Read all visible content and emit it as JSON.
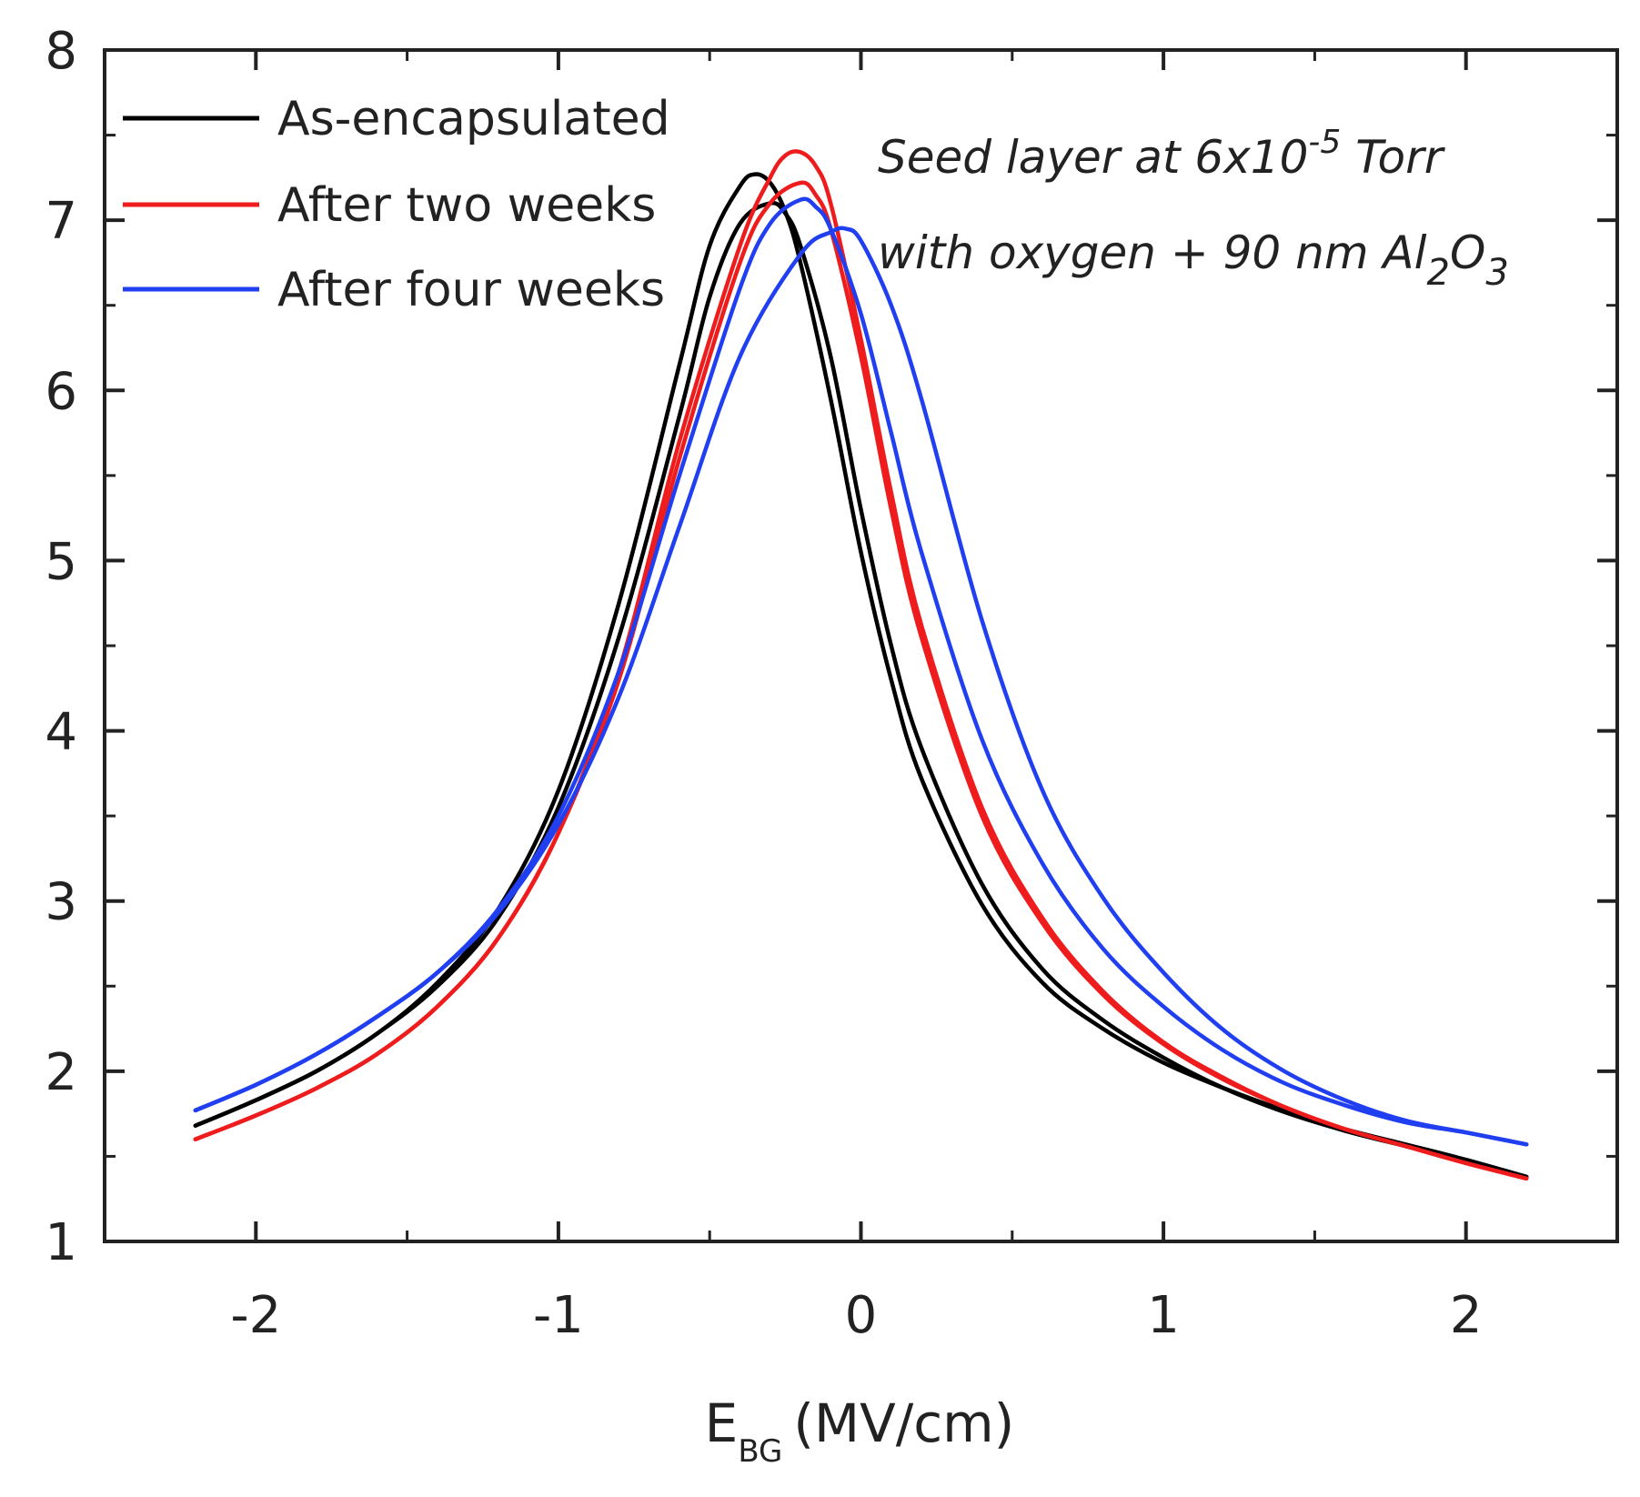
{
  "chart_data": {
    "type": "line",
    "title": "",
    "xlabel": {
      "main": "E",
      "sub": "BG",
      "unit": "(MV/cm)"
    },
    "ylabel": "",
    "xlim": [
      -2.5,
      2.5
    ],
    "ylim": [
      1,
      8
    ],
    "x_ticks": [
      -2,
      -1,
      0,
      1,
      2
    ],
    "x_tick_labels": [
      "-2",
      "-1",
      "0",
      "1",
      "2"
    ],
    "y_ticks": [
      1,
      2,
      3,
      4,
      5,
      6,
      7,
      8
    ],
    "y_tick_labels": [
      "1",
      "2",
      "3",
      "4",
      "5",
      "6",
      "7",
      "8"
    ],
    "grid": false,
    "legend_position": "top-left",
    "annotation": {
      "line1_pre": "Seed layer at 6x10",
      "line1_sup": "-5",
      "line1_post": " Torr",
      "line2_pre": "with oxygen + 90 nm Al",
      "line2_sub1": "2",
      "line2_mid": "O",
      "line2_sub2": "3"
    },
    "series": [
      {
        "name": "As-encapsulated",
        "color": "#000000",
        "curves": [
          {
            "x": [
              -2.2,
              -2.0,
              -1.8,
              -1.6,
              -1.4,
              -1.2,
              -1.0,
              -0.8,
              -0.6,
              -0.5,
              -0.4,
              -0.35,
              -0.3,
              -0.25,
              -0.2,
              -0.1,
              0.0,
              0.1,
              0.2,
              0.4,
              0.6,
              0.8,
              1.0,
              1.2,
              1.4,
              1.6,
              1.8,
              2.0,
              2.2
            ],
            "y": [
              1.68,
              1.83,
              2.0,
              2.22,
              2.52,
              2.95,
              3.65,
              4.75,
              6.15,
              6.85,
              7.2,
              7.27,
              7.22,
              7.05,
              6.75,
              5.95,
              5.05,
              4.3,
              3.72,
              2.98,
              2.52,
              2.25,
              2.05,
              1.9,
              1.77,
              1.66,
              1.57,
              1.48,
              1.38
            ]
          },
          {
            "x": [
              -2.2,
              -2.0,
              -1.8,
              -1.6,
              -1.4,
              -1.2,
              -1.0,
              -0.8,
              -0.6,
              -0.5,
              -0.4,
              -0.3,
              -0.25,
              -0.2,
              -0.1,
              0.0,
              0.1,
              0.2,
              0.4,
              0.6,
              0.8,
              1.0,
              1.2,
              1.4,
              1.6,
              1.8,
              2.0,
              2.2
            ],
            "y": [
              1.68,
              1.83,
              2.0,
              2.22,
              2.5,
              2.9,
              3.55,
              4.55,
              5.85,
              6.55,
              6.98,
              7.1,
              7.04,
              6.85,
              6.2,
              5.3,
              4.5,
              3.9,
              3.1,
              2.6,
              2.3,
              2.08,
              1.9,
              1.76,
              1.65,
              1.56,
              1.47,
              1.38
            ]
          }
        ]
      },
      {
        "name": "After two weeks",
        "color": "#ee1c1c",
        "curves": [
          {
            "x": [
              -2.2,
              -2.0,
              -1.8,
              -1.6,
              -1.4,
              -1.2,
              -1.0,
              -0.8,
              -0.6,
              -0.4,
              -0.3,
              -0.25,
              -0.2,
              -0.15,
              -0.1,
              0.0,
              0.1,
              0.2,
              0.4,
              0.6,
              0.8,
              1.0,
              1.2,
              1.4,
              1.6,
              1.8,
              2.0,
              2.2
            ],
            "y": [
              1.6,
              1.74,
              1.9,
              2.1,
              2.38,
              2.78,
              3.4,
              4.35,
              5.7,
              6.85,
              7.25,
              7.38,
              7.4,
              7.32,
              7.1,
              6.3,
              5.4,
              4.62,
              3.55,
              2.9,
              2.47,
              2.17,
              1.96,
              1.79,
              1.66,
              1.56,
              1.46,
              1.37
            ]
          },
          {
            "x": [
              -2.2,
              -2.0,
              -1.8,
              -1.6,
              -1.4,
              -1.2,
              -1.0,
              -0.8,
              -0.6,
              -0.4,
              -0.3,
              -0.2,
              -0.15,
              -0.1,
              0.0,
              0.1,
              0.2,
              0.4,
              0.6,
              0.8,
              1.0,
              1.2,
              1.4,
              1.6,
              1.8,
              2.0,
              2.2
            ],
            "y": [
              1.6,
              1.74,
              1.9,
              2.1,
              2.38,
              2.78,
              3.4,
              4.3,
              5.6,
              6.75,
              7.1,
              7.22,
              7.15,
              6.95,
              6.2,
              5.3,
              4.55,
              3.5,
              2.87,
              2.45,
              2.16,
              1.95,
              1.79,
              1.66,
              1.56,
              1.46,
              1.37
            ]
          }
        ]
      },
      {
        "name": "After four weeks",
        "color": "#1f3ff0",
        "curves": [
          {
            "x": [
              -2.2,
              -2.0,
              -1.8,
              -1.6,
              -1.4,
              -1.2,
              -1.0,
              -0.8,
              -0.6,
              -0.4,
              -0.3,
              -0.2,
              -0.15,
              -0.1,
              0.0,
              0.1,
              0.2,
              0.4,
              0.6,
              0.8,
              1.0,
              1.2,
              1.4,
              1.6,
              1.8,
              2.0,
              2.2
            ],
            "y": [
              1.77,
              1.92,
              2.1,
              2.32,
              2.58,
              2.95,
              3.5,
              4.35,
              5.5,
              6.6,
              6.98,
              7.12,
              7.08,
              6.95,
              6.45,
              5.75,
              5.05,
              3.95,
              3.22,
              2.72,
              2.38,
              2.12,
              1.93,
              1.8,
              1.7,
              1.64,
              1.57
            ]
          },
          {
            "x": [
              -2.2,
              -2.0,
              -1.8,
              -1.6,
              -1.4,
              -1.2,
              -1.0,
              -0.8,
              -0.6,
              -0.4,
              -0.2,
              -0.1,
              -0.05,
              0.0,
              0.1,
              0.2,
              0.4,
              0.6,
              0.8,
              1.0,
              1.2,
              1.4,
              1.6,
              1.8,
              2.0,
              2.2
            ],
            "y": [
              1.77,
              1.92,
              2.1,
              2.32,
              2.58,
              2.93,
              3.45,
              4.2,
              5.2,
              6.2,
              6.8,
              6.93,
              6.95,
              6.88,
              6.5,
              5.95,
              4.65,
              3.65,
              3.02,
              2.58,
              2.24,
              2.0,
              1.83,
              1.71,
              1.64,
              1.57
            ]
          }
        ]
      }
    ]
  }
}
